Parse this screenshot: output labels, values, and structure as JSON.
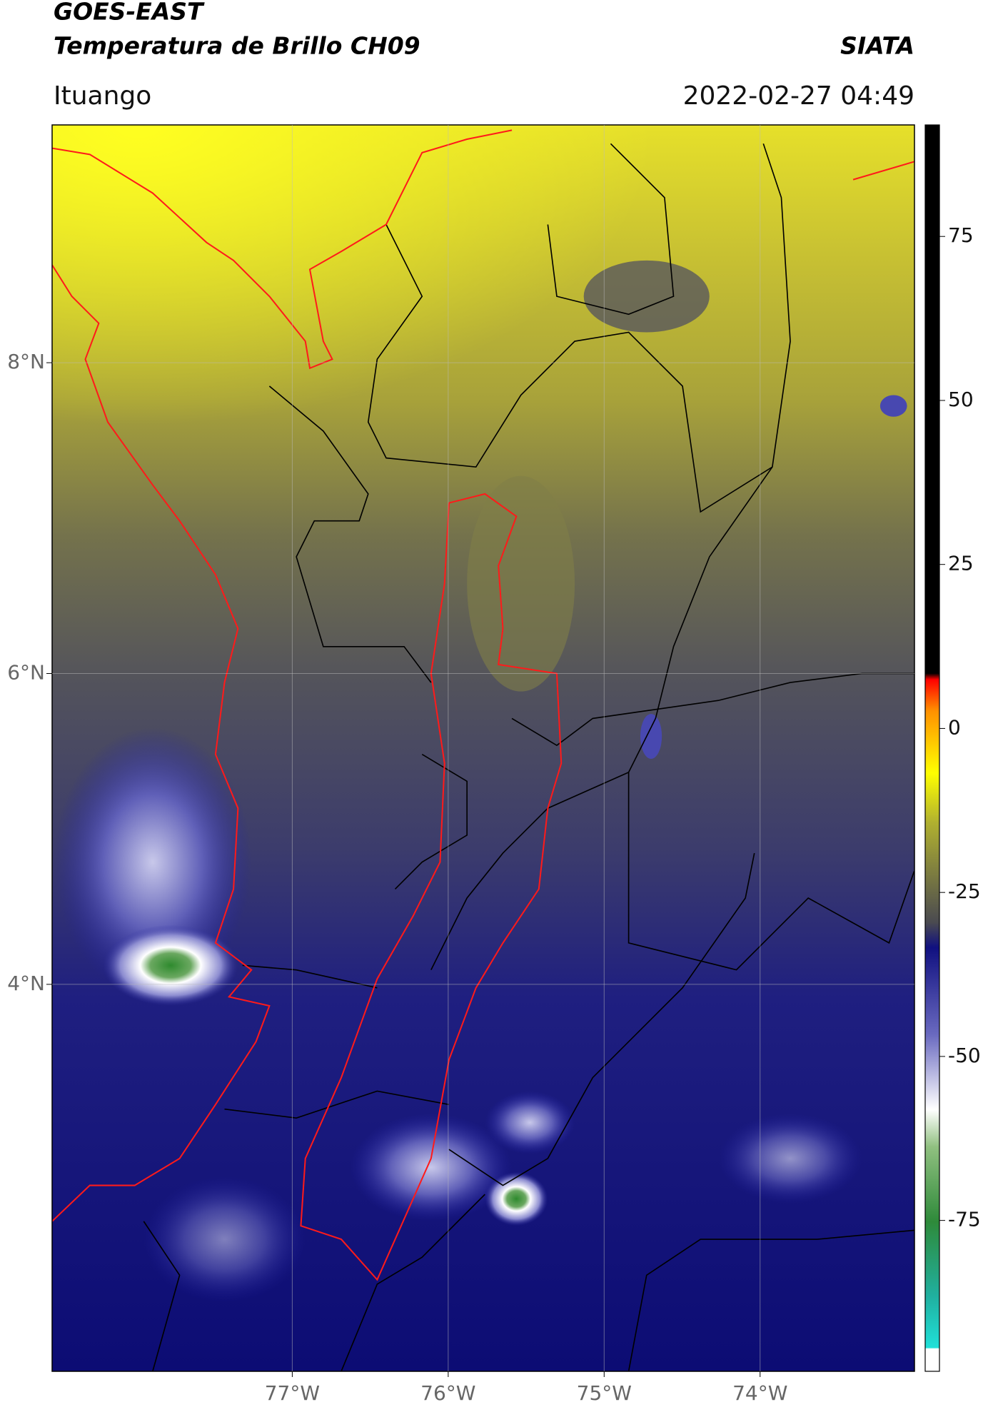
{
  "header": {
    "title": "GOES-EAST",
    "subtitle": "Temperatura de Brillo CH09",
    "source": "SIATA",
    "location": "Ituango",
    "datetime": "2022-02-27 04:49"
  },
  "chart_data": {
    "type": "map",
    "xlim": [
      -78.54,
      -73.01
    ],
    "ylim": [
      1.51,
      9.53
    ],
    "xticks": [
      {
        "value": -77,
        "label": "77°W"
      },
      {
        "value": -76,
        "label": "76°W"
      },
      {
        "value": -75,
        "label": "75°W"
      },
      {
        "value": -74,
        "label": "74°W"
      }
    ],
    "yticks": [
      {
        "value": 8,
        "label": "8°N"
      },
      {
        "value": 6,
        "label": "6°N"
      },
      {
        "value": 4,
        "label": "4°N"
      }
    ],
    "grid": true,
    "colorbar": {
      "lim": [
        -98,
        92
      ],
      "ticks": [
        75,
        50,
        25,
        0,
        -25,
        -50,
        -75
      ]
    }
  }
}
